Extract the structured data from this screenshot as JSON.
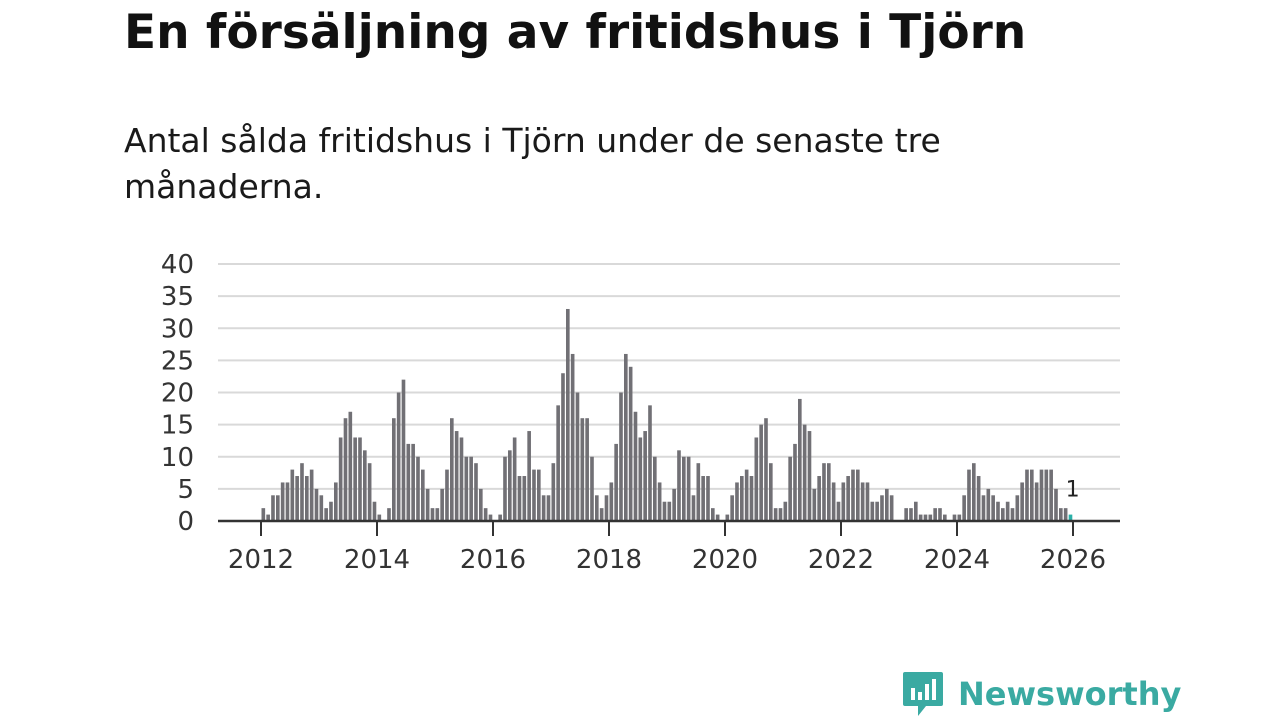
{
  "title": "En försäljning av fritidshus i Tjörn",
  "subtitle": "Antal sålda fritidshus i Tjörn under de senaste tre månaderna.",
  "colors": {
    "bar": "#717075",
    "highlight": "#2ab0a8",
    "grid": "#d9d9d9",
    "axis": "#333333",
    "brand": "#3aaaa2"
  },
  "logo": {
    "icon": "newsworthy-chat-chart-icon",
    "text": "Newsworthy"
  },
  "chart_data": {
    "type": "bar",
    "title": "En försäljning av fritidshus i Tjörn",
    "xlabel": "",
    "ylabel": "",
    "ylim": [
      0,
      40
    ],
    "y_ticks": [
      0,
      5,
      10,
      15,
      20,
      25,
      30,
      35,
      40
    ],
    "x_tick_labels": [
      "2012",
      "2014",
      "2016",
      "2018",
      "2020",
      "2022",
      "2024",
      "2026"
    ],
    "x_tick_years": [
      2012,
      2014,
      2016,
      2018,
      2020,
      2022,
      2024,
      2026
    ],
    "start": "2011-01",
    "grid": true,
    "series": [
      {
        "name": "Antal sålda fritidshus",
        "values": [
          0,
          0,
          0,
          0,
          0,
          0,
          0,
          0,
          0,
          0,
          0,
          0,
          2,
          1,
          4,
          4,
          6,
          6,
          8,
          7,
          9,
          7,
          8,
          5,
          4,
          2,
          3,
          6,
          13,
          16,
          17,
          13,
          13,
          11,
          9,
          3,
          1,
          0,
          2,
          16,
          20,
          22,
          12,
          12,
          10,
          8,
          5,
          2,
          2,
          5,
          8,
          16,
          14,
          13,
          10,
          10,
          9,
          5,
          2,
          1,
          0,
          1,
          10,
          11,
          13,
          7,
          7,
          14,
          8,
          8,
          4,
          4,
          9,
          18,
          23,
          33,
          26,
          20,
          16,
          16,
          10,
          4,
          2,
          4,
          6,
          12,
          20,
          26,
          24,
          17,
          13,
          14,
          18,
          10,
          6,
          3,
          3,
          5,
          11,
          10,
          10,
          4,
          9,
          7,
          7,
          2,
          1,
          0,
          1,
          4,
          6,
          7,
          8,
          7,
          13,
          15,
          16,
          9,
          2,
          2,
          3,
          10,
          12,
          19,
          15,
          14,
          5,
          7,
          9,
          9,
          6,
          3,
          6,
          7,
          8,
          8,
          6,
          6,
          3,
          3,
          4,
          5,
          4,
          0,
          0,
          2,
          2,
          3,
          1,
          1,
          1,
          2,
          2,
          1,
          0,
          1,
          1,
          4,
          8,
          9,
          7,
          4,
          5,
          4,
          3,
          2,
          3,
          2,
          4,
          6,
          8,
          8,
          6,
          8,
          8,
          8,
          5,
          2,
          2,
          1
        ]
      }
    ],
    "highlight_last": true,
    "annotation": {
      "text": "1",
      "target": "last"
    }
  }
}
